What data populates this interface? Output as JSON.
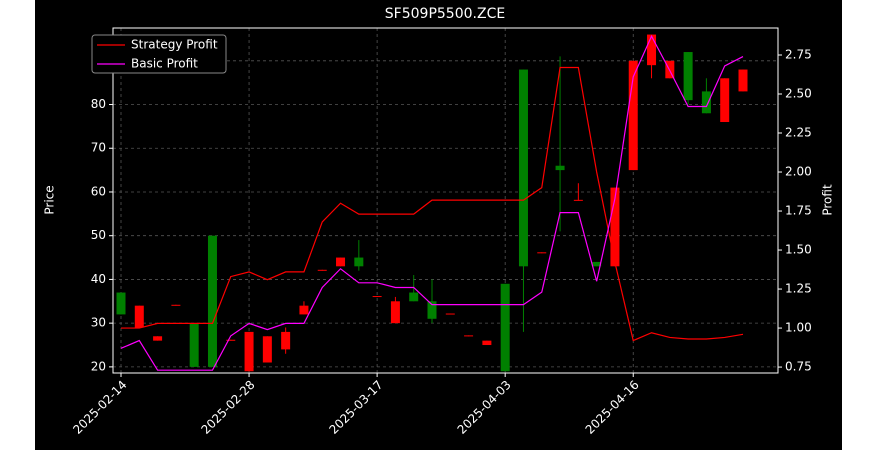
{
  "chart_data": {
    "type": "candlestick",
    "title": "SF509P5500.ZCE",
    "ylabel": "Price",
    "y2label": "Profit",
    "categories": [
      "2025-02-14",
      null,
      null,
      null,
      null,
      null,
      null,
      "2025-02-28",
      null,
      null,
      null,
      null,
      null,
      null,
      "2025-03-17",
      null,
      null,
      null,
      null,
      null,
      null,
      "2025-04-03",
      null,
      null,
      null,
      null,
      null,
      null,
      "2025-04-16",
      null,
      null,
      null,
      null,
      null,
      null
    ],
    "open": [
      32,
      34,
      27,
      34.2,
      20,
      20,
      26.2,
      28,
      27,
      28,
      34,
      42.2,
      45,
      43,
      36.2,
      35,
      35,
      31,
      32.2,
      27.2,
      26,
      19,
      43,
      46.2,
      65,
      58.2,
      43,
      61,
      90,
      96,
      90,
      81,
      78,
      86,
      88
    ],
    "high": [
      37,
      34,
      27,
      34.2,
      30,
      50,
      26.2,
      28,
      27,
      29,
      35,
      42.2,
      45,
      49,
      36.2,
      36,
      41,
      40,
      32.2,
      27.2,
      26,
      39,
      88,
      46.2,
      91,
      62,
      44,
      61,
      90,
      96,
      90,
      92,
      86,
      86,
      88
    ],
    "low": [
      32,
      29,
      26,
      34,
      20,
      20,
      26,
      19,
      21,
      23,
      32,
      42,
      43,
      42,
      36,
      30,
      35,
      30,
      32,
      27,
      25,
      19,
      28,
      46,
      51,
      58,
      43,
      43,
      65,
      86,
      86,
      80,
      78,
      76,
      83
    ],
    "close": [
      37,
      29,
      26,
      34,
      30,
      50,
      26,
      19,
      21,
      24,
      32,
      42,
      43,
      45,
      36,
      30,
      37,
      35,
      32,
      27,
      25,
      39,
      88,
      46,
      66,
      58,
      44,
      43,
      65,
      89,
      86,
      92,
      83,
      76,
      83
    ],
    "up_color": "#008000",
    "down_color": "#ff0000",
    "series": [
      {
        "name": "Strategy Profit",
        "color": "#ff0000",
        "axis": "y2",
        "values": [
          1.0,
          1.0,
          1.03,
          1.03,
          1.03,
          1.03,
          1.33,
          1.36,
          1.31,
          1.36,
          1.36,
          1.68,
          1.8,
          1.73,
          1.73,
          1.73,
          1.73,
          1.82,
          1.82,
          1.82,
          1.82,
          1.82,
          1.82,
          1.9,
          2.67,
          2.67,
          2.0,
          1.42,
          0.92,
          0.97,
          0.94,
          0.93,
          0.93,
          0.94,
          0.96
        ]
      },
      {
        "name": "Basic Profit",
        "color": "#ff00ff",
        "axis": "y2",
        "values": [
          0.87,
          0.92,
          0.73,
          0.73,
          0.73,
          0.73,
          0.95,
          1.03,
          0.99,
          1.03,
          1.03,
          1.26,
          1.38,
          1.29,
          1.29,
          1.26,
          1.26,
          1.15,
          1.15,
          1.15,
          1.15,
          1.15,
          1.15,
          1.23,
          1.74,
          1.74,
          1.3,
          1.83,
          2.61,
          2.87,
          2.65,
          2.42,
          2.42,
          2.68,
          2.74
        ]
      }
    ],
    "ylim": [
      18.6,
      97.5
    ],
    "yticks": [
      20,
      30,
      40,
      50,
      60,
      70,
      80,
      90
    ],
    "y2lim": [
      0.712,
      2.923
    ],
    "y2ticks": [
      0.75,
      {
        "value": 1,
        "label": "1.00"
      },
      1.25,
      {
        "value": 1.5,
        "label": "1.50"
      },
      1.75,
      {
        "value": 2,
        "label": "2.00"
      },
      2.25,
      {
        "value": 2.5,
        "label": "2.50"
      },
      2.75
    ],
    "grid": true,
    "legend": "upper left"
  }
}
